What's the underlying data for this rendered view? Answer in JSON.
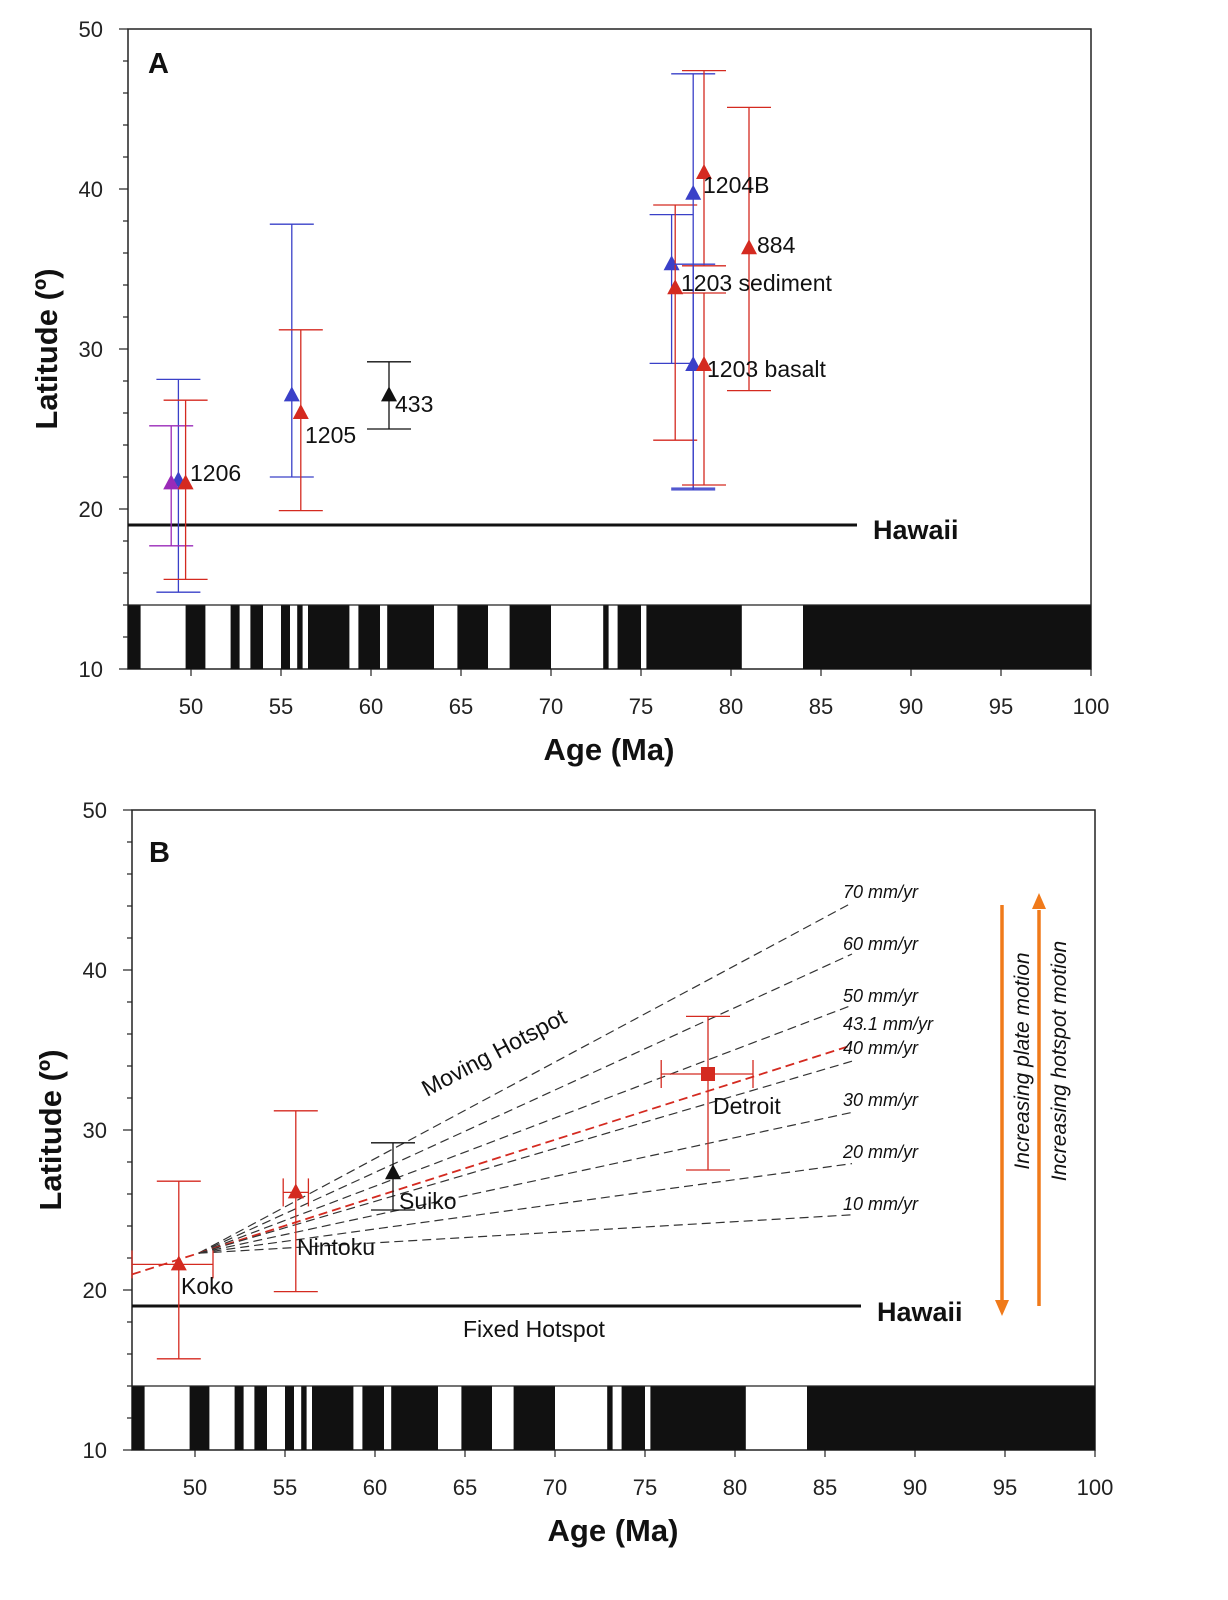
{
  "figure": {
    "panel_a": {
      "letter": "A",
      "xlabel": "Age (Ma)",
      "ylabel": "Latitude (º)",
      "xticks": [
        "50",
        "55",
        "60",
        "65",
        "70",
        "75",
        "80",
        "85",
        "90",
        "95",
        "100"
      ],
      "yticks": [
        "10",
        "20",
        "30",
        "40",
        "50"
      ],
      "hawaii_label": "Hawaii"
    },
    "panel_b": {
      "letter": "B",
      "xlabel": "Age (Ma)",
      "ylabel": "Latitude (º)",
      "xticks": [
        "50",
        "55",
        "60",
        "65",
        "70",
        "75",
        "80",
        "85",
        "90",
        "95",
        "100"
      ],
      "yticks": [
        "10",
        "20",
        "30",
        "40",
        "50"
      ],
      "hawaii_label": "Hawaii",
      "moving_label": "Moving Hotspot",
      "fixed_label": "Fixed Hotspot",
      "plate_motion_label": "Increasing plate motion",
      "hotspot_motion_label": "Increasing hotspot motion"
    }
  },
  "colors": {
    "red": "#d42a20",
    "blue": "#3a40c8",
    "purple": "#9a2ab8",
    "black": "#111111",
    "orange": "#f07a1a",
    "dash": "#333333"
  },
  "chart_data": [
    {
      "type": "scatter",
      "title": "A",
      "xlabel": "Age (Ma)",
      "ylabel": "Latitude (º)",
      "xlim": [
        46.5,
        100
      ],
      "ylim": [
        10,
        50
      ],
      "grid": false,
      "reference_line": {
        "label": "Hawaii",
        "y": 19,
        "x": [
          46.5,
          87
        ]
      },
      "points": [
        {
          "x": 49.3,
          "y": 21.8,
          "ylo": 14.8,
          "yhi": 28.1,
          "color": "blue",
          "label": ""
        },
        {
          "x": 48.9,
          "y": 21.6,
          "ylo": 17.7,
          "yhi": 25.2,
          "color": "purple",
          "label": ""
        },
        {
          "x": 49.7,
          "y": 21.6,
          "ylo": 15.6,
          "yhi": 26.8,
          "color": "red",
          "label": "1206"
        },
        {
          "x": 55.6,
          "y": 27.1,
          "ylo": 22.0,
          "yhi": 37.8,
          "color": "blue",
          "label": ""
        },
        {
          "x": 56.1,
          "y": 26.0,
          "ylo": 19.9,
          "yhi": 31.2,
          "color": "red",
          "label": "1205"
        },
        {
          "x": 61.0,
          "y": 27.1,
          "ylo": 25.0,
          "yhi": 29.2,
          "color": "black",
          "label": "433"
        },
        {
          "x": 76.7,
          "y": 35.3,
          "ylo": 29.1,
          "yhi": 38.4,
          "color": "blue",
          "label": ""
        },
        {
          "x": 76.9,
          "y": 33.8,
          "ylo": 24.3,
          "yhi": 39.0,
          "color": "red",
          "label": "1203 sediment"
        },
        {
          "x": 77.9,
          "y": 39.7,
          "ylo": 21.2,
          "yhi": 47.2,
          "color": "blue",
          "label": ""
        },
        {
          "x": 78.5,
          "y": 41.0,
          "ylo": 35.2,
          "yhi": 47.4,
          "color": "red",
          "label": "1204B"
        },
        {
          "x": 77.9,
          "y": 29.0,
          "ylo": 21.3,
          "yhi": 35.3,
          "color": "blue",
          "label": ""
        },
        {
          "x": 78.5,
          "y": 29.0,
          "ylo": 21.5,
          "yhi": 33.5,
          "color": "red",
          "label": "1203 basalt"
        },
        {
          "x": 81.0,
          "y": 36.3,
          "ylo": 27.4,
          "yhi": 45.1,
          "color": "red",
          "label": "884"
        }
      ],
      "polarity_normal_intervals": [
        [
          47.2,
          49.7
        ],
        [
          50.8,
          52.2
        ],
        [
          52.7,
          53.3
        ],
        [
          54.0,
          55.0
        ],
        [
          55.5,
          55.9
        ],
        [
          56.2,
          56.5
        ],
        [
          58.8,
          59.3
        ],
        [
          60.5,
          60.9
        ],
        [
          63.5,
          64.8
        ],
        [
          66.5,
          67.7
        ],
        [
          70.0,
          72.9
        ],
        [
          73.2,
          73.7
        ],
        [
          75.0,
          75.3
        ],
        [
          80.6,
          84.0
        ]
      ]
    },
    {
      "type": "scatter",
      "title": "B",
      "xlabel": "Age (Ma)",
      "ylabel": "Latitude (º)",
      "xlim": [
        46.5,
        100
      ],
      "ylim": [
        10,
        50
      ],
      "grid": false,
      "reference_line": {
        "label": "Hawaii",
        "y": 19,
        "x": [
          46.5,
          87
        ]
      },
      "points": [
        {
          "label": "Koko",
          "x": 49.1,
          "y": 21.6,
          "ylo": 15.7,
          "yhi": 26.8,
          "xlo": 46.5,
          "xhi": 51.0,
          "color": "red",
          "marker": "triangle"
        },
        {
          "label": "Nintoku",
          "x": 55.6,
          "y": 26.1,
          "ylo": 19.9,
          "yhi": 31.2,
          "xlo": 54.9,
          "xhi": 56.3,
          "color": "red",
          "marker": "triangle"
        },
        {
          "label": "Suiko",
          "x": 61.0,
          "y": 27.3,
          "ylo": 25.0,
          "yhi": 29.2,
          "color": "black",
          "marker": "triangle"
        },
        {
          "label": "Detroit",
          "x": 78.5,
          "y": 33.5,
          "ylo": 27.5,
          "yhi": 37.1,
          "xlo": 75.9,
          "xhi": 81.0,
          "color": "red",
          "marker": "square"
        }
      ],
      "rate_lines": [
        {
          "label": "70 mm/yr",
          "y_end": 44.2,
          "color": "dash"
        },
        {
          "label": "60 mm/yr",
          "y_end": 41.0,
          "color": "dash"
        },
        {
          "label": "50 mm/yr",
          "y_end": 37.8,
          "color": "dash"
        },
        {
          "label": "43.1 mm/yr",
          "y_end": 35.3,
          "color": "red"
        },
        {
          "label": "40 mm/yr",
          "y_end": 34.3,
          "color": "dash"
        },
        {
          "label": "30 mm/yr",
          "y_end": 31.1,
          "color": "dash"
        },
        {
          "label": "20 mm/yr",
          "y_end": 27.9,
          "color": "dash"
        },
        {
          "label": "10 mm/yr",
          "y_end": 24.7,
          "color": "dash"
        }
      ],
      "rate_line_origin": {
        "x": 50.2,
        "y": 22.3
      },
      "rate_line_end_x": 86.5,
      "polarity_normal_intervals": [
        [
          47.2,
          49.7
        ],
        [
          50.8,
          52.2
        ],
        [
          52.7,
          53.3
        ],
        [
          54.0,
          55.0
        ],
        [
          55.5,
          55.9
        ],
        [
          56.2,
          56.5
        ],
        [
          58.8,
          59.3
        ],
        [
          60.5,
          60.9
        ],
        [
          63.5,
          64.8
        ],
        [
          66.5,
          67.7
        ],
        [
          70.0,
          72.9
        ],
        [
          73.2,
          73.7
        ],
        [
          75.0,
          75.3
        ],
        [
          80.6,
          84.0
        ]
      ]
    }
  ]
}
